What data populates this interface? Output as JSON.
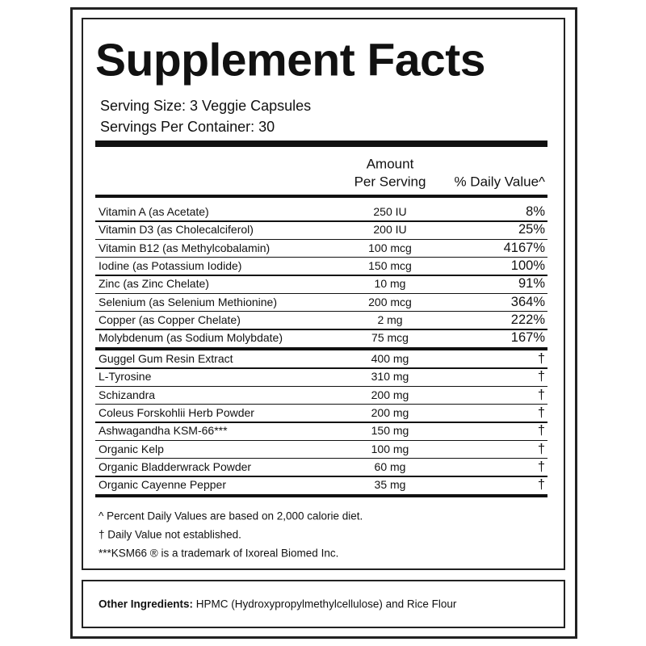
{
  "header": {
    "title": "Supplement Facts",
    "serving_size": "Serving Size: 3 Veggie Capsules",
    "servings_per_container": "Servings Per Container: 30"
  },
  "table": {
    "amount_header": [
      "Amount",
      "Per Serving"
    ],
    "dv_header": "% Daily Value^",
    "vitamins": [
      [
        "Vitamin A (as Acetate)",
        "250 IU",
        "8%"
      ],
      [
        "Vitamin D3 (as Cholecalciferol)",
        "200 IU",
        "25%"
      ],
      [
        "Vitamin B12 (as Methylcobalamin)",
        "100 mcg",
        "4167%"
      ],
      [
        "Iodine (as Potassium Iodide)",
        "150 mcg",
        "100%"
      ],
      [
        "Zinc (as Zinc Chelate)",
        "10 mg",
        "91%"
      ],
      [
        "Selenium (as Selenium Methionine)",
        "200 mcg",
        "364%"
      ],
      [
        "Copper (as Copper Chelate)",
        "2 mg",
        "222%"
      ],
      [
        "Molybdenum (as Sodium Molybdate)",
        "75 mcg",
        "167%"
      ]
    ],
    "botanicals": [
      [
        "Guggel Gum Resin Extract",
        "400 mg",
        "†"
      ],
      [
        "L-Tyrosine",
        "310 mg",
        "†"
      ],
      [
        "Schizandra",
        "200 mg",
        "†"
      ],
      [
        "Coleus Forskohlii Herb Powder",
        "200 mg",
        "†"
      ],
      [
        "Ashwagandha KSM-66***",
        "150 mg",
        "†"
      ],
      [
        "Organic Kelp",
        "100 mg",
        "†"
      ],
      [
        "Organic Bladderwrack Powder",
        "60 mg",
        "†"
      ],
      [
        "Organic Cayenne Pepper",
        "35 mg",
        "†"
      ]
    ]
  },
  "footnotes": [
    "^ Percent Daily Values are based on 2,000 calorie diet.",
    "† Daily Value not established.",
    "***KSM66 ® is a trademark of Ixoreal Biomed Inc."
  ],
  "other_ingredients": {
    "label": "Other Ingredients:",
    "text": "HPMC (Hydroxypropylmethylcellulose) and Rice Flour"
  }
}
